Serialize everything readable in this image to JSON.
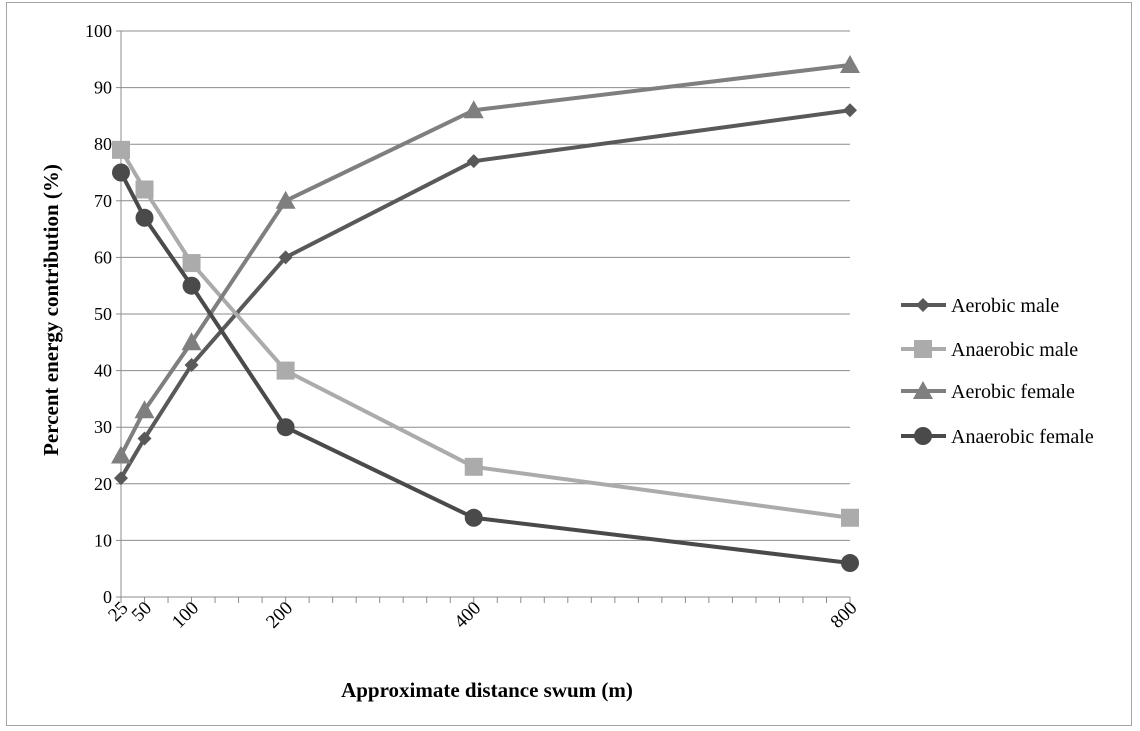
{
  "chart_data": {
    "type": "line",
    "xlabel": "Approximate distance swum (m)",
    "ylabel": "Percent energy contribution  (%)",
    "x": [
      25,
      50,
      100,
      200,
      400,
      800
    ],
    "x_tick_labels": [
      "25",
      "50",
      "100",
      "200",
      "400",
      "800"
    ],
    "xlim": [
      25,
      800
    ],
    "ylim": [
      0,
      100
    ],
    "y_ticks": [
      0,
      10,
      20,
      30,
      40,
      50,
      60,
      70,
      80,
      90,
      100
    ],
    "grid": "horizontal",
    "legend_position": "right",
    "series": [
      {
        "name": "Aerobic male",
        "values": [
          21,
          28,
          41,
          60,
          77,
          86
        ],
        "color": "#595959",
        "marker": "diamond"
      },
      {
        "name": "Anaerobic male",
        "values": [
          79,
          72,
          59,
          40,
          23,
          14
        ],
        "color": "#ababab",
        "marker": "square"
      },
      {
        "name": "Aerobic female",
        "values": [
          25,
          33,
          45,
          70,
          86,
          94
        ],
        "color": "#7f7f7f",
        "marker": "triangle"
      },
      {
        "name": "Anaerobic female",
        "values": [
          75,
          67,
          55,
          30,
          14,
          6
        ],
        "color": "#4a4a4a",
        "marker": "circle"
      }
    ]
  }
}
